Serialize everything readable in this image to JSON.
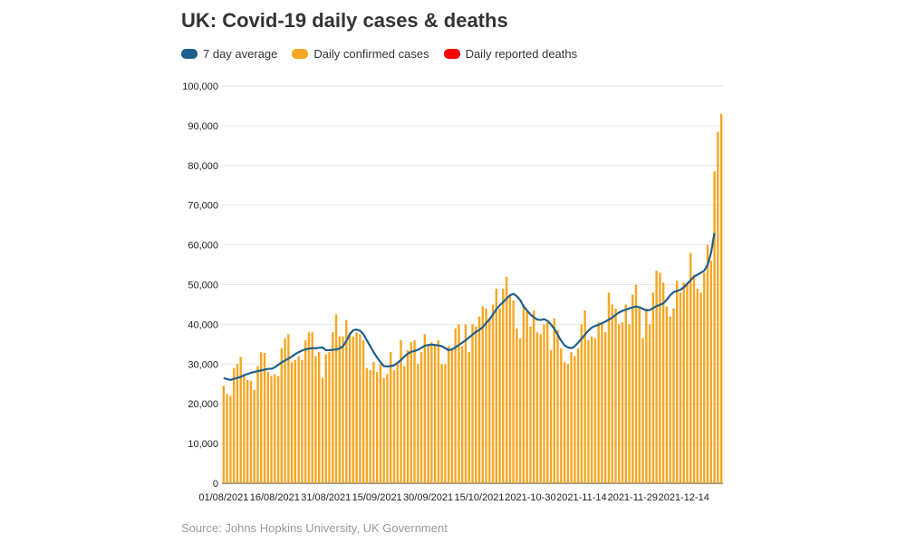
{
  "chart_data": {
    "type": "bar",
    "title": "UK: Covid-19 daily cases & deaths",
    "legend": [
      {
        "label": "7 day average",
        "color": "#1f5f8b"
      },
      {
        "label": "Daily confirmed cases",
        "color": "#f5a623"
      },
      {
        "label": "Daily reported deaths",
        "color": "#ff0000"
      }
    ],
    "ylim": [
      0,
      100000
    ],
    "yticks": [
      "0",
      "10,000",
      "20,000",
      "30,000",
      "40,000",
      "50,000",
      "60,000",
      "70,000",
      "80,000",
      "90,000",
      "100,000"
    ],
    "xtick_labels": [
      "01/08/2021",
      "16/08/2021",
      "31/08/2021",
      "15/09/2021",
      "30/09/2021",
      "15/10/2021",
      "2021-10-30",
      "2021-11-14",
      "2021-11-29",
      "2021-12-14"
    ],
    "x_start_date": "2021-08-01",
    "series": [
      {
        "name": "Daily confirmed cases",
        "color": "#f5a623",
        "values": [
          24500,
          22500,
          22000,
          29000,
          30000,
          31800,
          27500,
          26000,
          25800,
          23500,
          29500,
          33000,
          32800,
          28000,
          27000,
          27500,
          27000,
          34000,
          36500,
          37500,
          30500,
          31000,
          32000,
          31000,
          36000,
          38000,
          38000,
          32000,
          33000,
          26500,
          32500,
          33000,
          38000,
          42500,
          37000,
          37000,
          41000,
          38000,
          37000,
          38000,
          37500,
          36000,
          29000,
          28500,
          30500,
          28000,
          30000,
          26500,
          27500,
          33000,
          28500,
          30000,
          36000,
          29500,
          33500,
          35500,
          36000,
          30000,
          33000,
          37500,
          34500,
          35500,
          34500,
          36000,
          30000,
          30000,
          34500,
          33500,
          39000,
          40000,
          34500,
          40000,
          33000,
          40000,
          39500,
          42000,
          44500,
          44000,
          41500,
          45000,
          49000,
          44000,
          49000,
          52000,
          47000,
          46000,
          39000,
          36500,
          45000,
          43500,
          39500,
          43500,
          38000,
          37500,
          40000,
          40500,
          33500,
          41500,
          38500,
          34000,
          30500,
          30000,
          33000,
          32000,
          34000,
          40000,
          43500,
          36000,
          37000,
          36500,
          40500,
          40000,
          38000,
          48000,
          45000,
          44000,
          40000,
          40500,
          45000,
          40000,
          47500,
          50000,
          44000,
          36500,
          44000,
          40000,
          48000,
          53500,
          53000,
          50500,
          44500,
          42000,
          44000,
          51000,
          48000,
          50500,
          50500,
          58000,
          52500,
          49000,
          48000,
          53000,
          60000,
          56000,
          78500,
          88500,
          93000
        ]
      },
      {
        "name": "7 day average",
        "color": "#1f5f8b",
        "values": [
          26500,
          26200,
          26000,
          26300,
          26500,
          26800,
          27200,
          27500,
          27800,
          28000,
          28200,
          28400,
          28600,
          28800,
          28800,
          29200,
          29800,
          30400,
          30900,
          31400,
          31900,
          32500,
          33000,
          33400,
          33700,
          33900,
          34000,
          34000,
          34100,
          34200,
          33500,
          33500,
          33600,
          33700,
          33900,
          34500,
          35800,
          37500,
          38500,
          38700,
          38400,
          37500,
          36000,
          34500,
          33000,
          31700,
          30500,
          29500,
          29400,
          29500,
          29700,
          30300,
          31000,
          31900,
          32600,
          33100,
          33300,
          33600,
          34100,
          34600,
          34800,
          34900,
          34800,
          34700,
          34500,
          34000,
          33500,
          33700,
          34200,
          34800,
          35400,
          36000,
          36700,
          37400,
          38100,
          38600,
          39300,
          40300,
          41300,
          42500,
          43800,
          44800,
          45600,
          46500,
          47300,
          47700,
          47100,
          46100,
          44500,
          43500,
          42500,
          41800,
          41200,
          41100,
          41300,
          40900,
          40000,
          38900,
          37400,
          35900,
          34700,
          34200,
          34000,
          34500,
          35400,
          36400,
          37400,
          38400,
          39200,
          39600,
          39900,
          40300,
          40700,
          41200,
          41700,
          42400,
          43000,
          43400,
          43700,
          44000,
          44300,
          44500,
          44300,
          43900,
          43500,
          43600,
          44100,
          44600,
          44900,
          45300,
          46200,
          47300,
          48100,
          48400,
          48700,
          49300,
          50200,
          51100,
          52000,
          52500,
          53000,
          53500,
          55000,
          58000,
          63000
        ]
      },
      {
        "name": "Daily reported deaths",
        "color": "#ff0000",
        "values": []
      }
    ]
  },
  "source": "Source: Johns Hopkins University, UK Government"
}
